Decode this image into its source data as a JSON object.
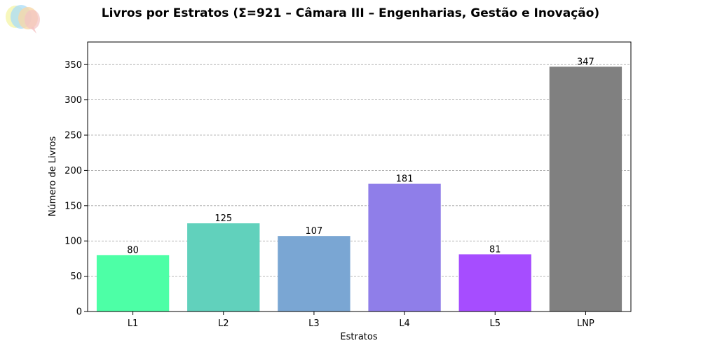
{
  "chart_data": {
    "type": "bar",
    "title": "Livros por Estratos (Σ=921 – Câmara III – Engenharias, Gestão e Inovação)",
    "xlabel": "Estratos",
    "ylabel": "Número de Livros",
    "categories": [
      "L1",
      "L2",
      "L3",
      "L4",
      "L5",
      "LNP"
    ],
    "values": [
      80,
      125,
      107,
      181,
      81,
      347
    ],
    "colors": [
      "#4dffa6",
      "#61d1bc",
      "#7aa6d3",
      "#8f7ee9",
      "#a64dff",
      "#808080"
    ],
    "ylim": [
      0,
      382
    ],
    "yticks": [
      0,
      50,
      100,
      150,
      200,
      250,
      300,
      350
    ],
    "grid": true,
    "grid_axis": "y",
    "data_labels": true
  },
  "logo": {
    "icon": "speech-bubbles-logo-icon"
  }
}
